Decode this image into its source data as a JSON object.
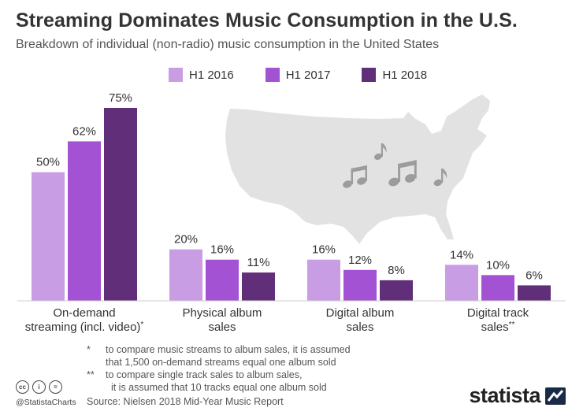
{
  "header": {
    "title": "Streaming Dominates Music Consumption in the U.S.",
    "subtitle": "Breakdown of individual (non-radio) music consumption in the United States"
  },
  "colors": {
    "h1_2016": "#c99de3",
    "h1_2017": "#a252d3",
    "h1_2018": "#612e7a",
    "map": "#e2e2e2",
    "notes_icon": "#9c9c9c"
  },
  "chart_data": {
    "type": "bar",
    "categories": [
      [
        "On-demand",
        "streaming (incl. video)*"
      ],
      [
        "Physical album",
        "sales"
      ],
      [
        "Digital album",
        "sales"
      ],
      [
        "Digital track",
        "sales**"
      ]
    ],
    "series": [
      {
        "name": "H1 2016",
        "values": [
          50,
          20,
          16,
          14
        ]
      },
      {
        "name": "H1 2017",
        "values": [
          62,
          16,
          12,
          10
        ]
      },
      {
        "name": "H1 2018",
        "values": [
          75,
          11,
          8,
          6
        ]
      }
    ],
    "value_suffix": "%",
    "ylim": [
      0,
      75
    ],
    "grid": false,
    "legend_position": "top"
  },
  "footnotes": [
    {
      "mark": "*",
      "lines": [
        "to compare music streams to album sales, it is assumed",
        "that 1,500 on-demand streams equal one album sold"
      ]
    },
    {
      "mark": "**",
      "lines": [
        "to compare single track sales to album sales,",
        "it is assumed that 10 tracks equal one album sold"
      ]
    }
  ],
  "footer": {
    "cc_icons": [
      "cc-icon",
      "by-icon",
      "nd-icon"
    ],
    "cc_glyphs": [
      "cc",
      "i",
      "="
    ],
    "handle": "@StatistaCharts",
    "source": "Source: Nielsen 2018 Mid-Year Music Report",
    "brand": "statista"
  }
}
